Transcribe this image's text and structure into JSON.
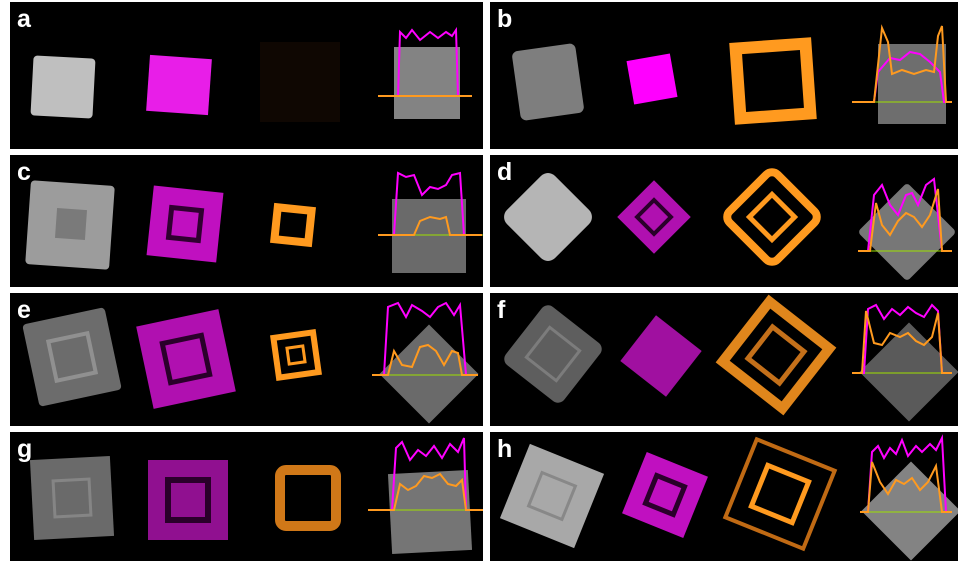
{
  "figure": {
    "panels": [
      {
        "label": "a"
      },
      {
        "label": "b"
      },
      {
        "label": "c"
      },
      {
        "label": "d"
      },
      {
        "label": "e"
      },
      {
        "label": "f"
      },
      {
        "label": "g"
      },
      {
        "label": "h"
      }
    ],
    "channel_colors": {
      "tem": "#c8c8c8",
      "magenta": "#ff00ff",
      "orange": "#ff9a1f",
      "baseline": "#9ee000"
    }
  }
}
